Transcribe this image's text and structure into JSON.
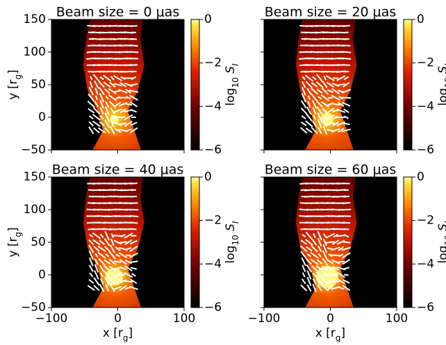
{
  "chart_data": [
    {
      "type": "heatmap",
      "title": "Beam size = 0 μas",
      "core_blur": 0,
      "xlim": [
        -100,
        100
      ],
      "xticks": [
        {
          "value": -100,
          "label": "−100"
        },
        0,
        100
      ],
      "ylim": [
        -50,
        150
      ],
      "yticks": [
        {
          "value": -50,
          "label": "−50"
        },
        0,
        50,
        100,
        150
      ],
      "ylabel": {
        "text": "y [r",
        "sub": "g",
        "end": "]"
      },
      "clim": [
        -6,
        0
      ],
      "cticks": [
        {
          "value": -6,
          "label": "−6"
        },
        {
          "value": -4,
          "label": "−4"
        },
        {
          "value": -2,
          "label": "−2"
        },
        0
      ],
      "clabel": {
        "text": "log",
        "sub": "10",
        "mid": " S",
        "sub2": "I"
      }
    },
    {
      "type": "heatmap",
      "title": "Beam size = 20 μas",
      "core_blur": 20,
      "xlim": [
        -100,
        100
      ],
      "xticks": [
        -100,
        0,
        100
      ],
      "ylim": [
        -50,
        150
      ],
      "yticks": [
        -50,
        0,
        50,
        100,
        150
      ],
      "clim": [
        -6,
        0
      ],
      "cticks": [
        {
          "value": -6,
          "label": "−6"
        },
        {
          "value": -4,
          "label": "−4"
        },
        {
          "value": -2,
          "label": "−2"
        },
        0
      ],
      "clabel": {
        "text": "log",
        "sub": "10",
        "mid": " S",
        "sub2": "I"
      }
    },
    {
      "type": "heatmap",
      "title": "Beam size = 40 μas",
      "core_blur": 40,
      "xlim": [
        -100,
        100
      ],
      "xticks": [
        {
          "value": -100,
          "label": "−100"
        },
        0,
        100
      ],
      "ylim": [
        -50,
        150
      ],
      "yticks": [
        {
          "value": -50,
          "label": "−50"
        },
        0,
        50,
        100,
        150
      ],
      "xlabel": {
        "text": "x [r",
        "sub": "g",
        "end": "]"
      },
      "ylabel": {
        "text": "y [r",
        "sub": "g",
        "end": "]"
      },
      "clim": [
        -6,
        0
      ],
      "cticks": [
        {
          "value": -6,
          "label": "−6"
        },
        {
          "value": -4,
          "label": "−4"
        },
        {
          "value": -2,
          "label": "−2"
        },
        0
      ],
      "clabel": {
        "text": "log",
        "sub": "10",
        "mid": " S",
        "sub2": "I"
      }
    },
    {
      "type": "heatmap",
      "title": "Beam size = 60 μas",
      "core_blur": 60,
      "xlim": [
        -100,
        100
      ],
      "xticks": [
        {
          "value": -100,
          "label": "−100"
        },
        0,
        100
      ],
      "ylim": [
        -50,
        150
      ],
      "yticks": [
        -50,
        0,
        50,
        100,
        150
      ],
      "xlabel": {
        "text": "x [r",
        "sub": "g",
        "end": "]"
      },
      "clim": [
        -6,
        0
      ],
      "cticks": [
        {
          "value": -6,
          "label": "−6"
        },
        {
          "value": -4,
          "label": "−4"
        },
        {
          "value": -2,
          "label": "−2"
        },
        0
      ],
      "clabel": {
        "text": "log",
        "sub": "10",
        "mid": " S",
        "sub2": "I"
      }
    }
  ]
}
